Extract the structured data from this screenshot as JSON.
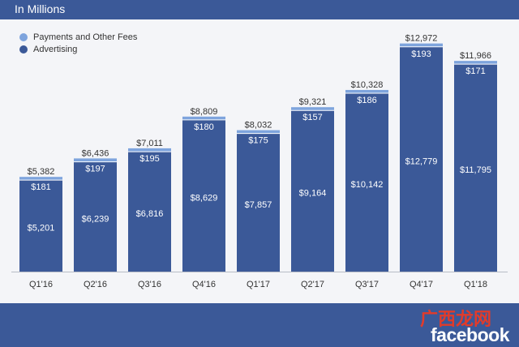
{
  "header": {
    "title": "In Millions"
  },
  "brand": {
    "logo_text": "facebook",
    "watermark_text": "广西龙网"
  },
  "colors": {
    "header_bg": "#3b5998",
    "advertising": "#3b5998",
    "payments": "#7ea4dd",
    "plot_bg": "#f4f5f8"
  },
  "chart_data": {
    "type": "bar",
    "stacked": true,
    "title": "In Millions",
    "xlabel": "",
    "ylabel": "",
    "ylim": [
      0,
      13000
    ],
    "grid": false,
    "legend_position": "top-left",
    "categories": [
      "Q1'16",
      "Q2'16",
      "Q3'16",
      "Q4'16",
      "Q1'17",
      "Q2'17",
      "Q3'17",
      "Q4'17",
      "Q1'18"
    ],
    "series": [
      {
        "name": "Advertising",
        "values": [
          5201,
          6239,
          6816,
          8629,
          7857,
          9164,
          10142,
          12779,
          11795
        ],
        "labels": [
          "$5,201",
          "$6,239",
          "$6,816",
          "$8,629",
          "$7,857",
          "$9,164",
          "$10,142",
          "$12,779",
          "$11,795"
        ]
      },
      {
        "name": "Payments and Other Fees",
        "values": [
          181,
          197,
          195,
          180,
          175,
          157,
          186,
          193,
          171
        ],
        "labels": [
          "$181",
          "$197",
          "$195",
          "$180",
          "$175",
          "$157",
          "$186",
          "$193",
          "$171"
        ]
      }
    ],
    "totals": [
      5382,
      6436,
      7011,
      8809,
      8032,
      9321,
      10328,
      12972,
      11966
    ],
    "total_labels": [
      "$5,382",
      "$6,436",
      "$7,011",
      "$8,809",
      "$8,032",
      "$9,321",
      "$10,328",
      "$12,972",
      "$11,966"
    ]
  }
}
